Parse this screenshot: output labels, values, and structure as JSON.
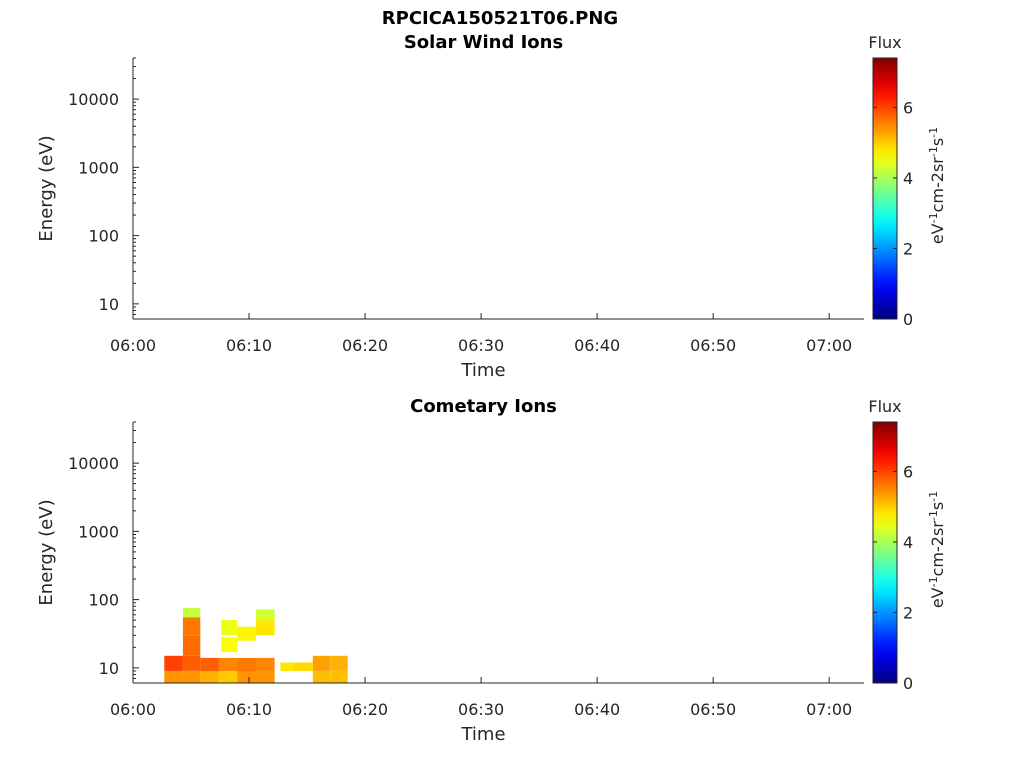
{
  "figure": {
    "filename_title": "RPCICA150521T06.PNG"
  },
  "chart_data": [
    {
      "type": "heatmap",
      "title": "Solar Wind Ions",
      "xlabel": "Time",
      "ylabel": "Energy (eV)",
      "x_ticks": [
        "06:00",
        "06:10",
        "06:20",
        "06:30",
        "06:40",
        "06:50",
        "07:00"
      ],
      "y_ticks": [
        "10",
        "100",
        "1000",
        "10000"
      ],
      "y_scale": "log",
      "ylim": [
        6,
        40000
      ],
      "xlim_minutes": [
        0,
        63
      ],
      "colorbar": {
        "title": "Flux",
        "label": "eV-1cm-2sr-1s-1",
        "ticks": [
          "0",
          "2",
          "4",
          "6"
        ],
        "range": [
          0,
          7.4
        ],
        "colormap": "jet"
      },
      "cells": []
    },
    {
      "type": "heatmap",
      "title": "Cometary Ions",
      "xlabel": "Time",
      "ylabel": "Energy (eV)",
      "x_ticks": [
        "06:00",
        "06:10",
        "06:20",
        "06:30",
        "06:40",
        "06:50",
        "07:00"
      ],
      "y_ticks": [
        "10",
        "100",
        "1000",
        "10000"
      ],
      "y_scale": "log",
      "ylim": [
        6,
        40000
      ],
      "xlim_minutes": [
        0,
        63
      ],
      "colorbar": {
        "title": "Flux",
        "label": "eV-1cm-2sr-1s-1",
        "ticks": [
          "0",
          "2",
          "4",
          "6"
        ],
        "range": [
          0,
          7.4
        ],
        "colormap": "jet"
      },
      "cells": [
        {
          "t0": 2.7,
          "t1": 4.3,
          "e0": 6,
          "e1": 9,
          "v": 5.4
        },
        {
          "t0": 2.7,
          "t1": 4.3,
          "e0": 9,
          "e1": 15,
          "v": 6.0
        },
        {
          "t0": 4.3,
          "t1": 5.8,
          "e0": 6,
          "e1": 9,
          "v": 5.4
        },
        {
          "t0": 4.3,
          "t1": 5.8,
          "e0": 9,
          "e1": 15,
          "v": 5.8
        },
        {
          "t0": 4.3,
          "t1": 5.8,
          "e0": 15,
          "e1": 30,
          "v": 5.7
        },
        {
          "t0": 4.3,
          "t1": 5.8,
          "e0": 30,
          "e1": 55,
          "v": 5.6
        },
        {
          "t0": 4.3,
          "t1": 5.8,
          "e0": 55,
          "e1": 75,
          "v": 4.2
        },
        {
          "t0": 5.8,
          "t1": 7.4,
          "e0": 6,
          "e1": 9,
          "v": 5.2
        },
        {
          "t0": 5.8,
          "t1": 7.4,
          "e0": 9,
          "e1": 14,
          "v": 5.8
        },
        {
          "t0": 7.4,
          "t1": 9.0,
          "e0": 6,
          "e1": 9,
          "v": 5.0
        },
        {
          "t0": 7.4,
          "t1": 9.0,
          "e0": 9,
          "e1": 14,
          "v": 5.5
        },
        {
          "t0": 7.6,
          "t1": 9.0,
          "e0": 17,
          "e1": 28,
          "v": 4.6
        },
        {
          "t0": 7.6,
          "t1": 9.0,
          "e0": 30,
          "e1": 50,
          "v": 4.5
        },
        {
          "t0": 9.0,
          "t1": 10.6,
          "e0": 6,
          "e1": 9,
          "v": 5.4
        },
        {
          "t0": 9.0,
          "t1": 10.6,
          "e0": 9,
          "e1": 14,
          "v": 5.6
        },
        {
          "t0": 9.0,
          "t1": 10.6,
          "e0": 25,
          "e1": 40,
          "v": 4.7
        },
        {
          "t0": 10.6,
          "t1": 12.2,
          "e0": 6,
          "e1": 9,
          "v": 5.4
        },
        {
          "t0": 10.6,
          "t1": 12.2,
          "e0": 9,
          "e1": 14,
          "v": 5.5
        },
        {
          "t0": 10.6,
          "t1": 12.2,
          "e0": 30,
          "e1": 50,
          "v": 4.8
        },
        {
          "t0": 10.6,
          "t1": 12.2,
          "e0": 50,
          "e1": 72,
          "v": 4.3
        },
        {
          "t0": 12.7,
          "t1": 13.8,
          "e0": 9,
          "e1": 12,
          "v": 4.8
        },
        {
          "t0": 13.8,
          "t1": 15.5,
          "e0": 9,
          "e1": 12,
          "v": 4.9
        },
        {
          "t0": 15.5,
          "t1": 17.0,
          "e0": 6,
          "e1": 9,
          "v": 5.1
        },
        {
          "t0": 15.5,
          "t1": 17.0,
          "e0": 9,
          "e1": 15,
          "v": 5.3
        },
        {
          "t0": 17.0,
          "t1": 18.5,
          "e0": 6,
          "e1": 9,
          "v": 5.1
        },
        {
          "t0": 17.0,
          "t1": 18.5,
          "e0": 9,
          "e1": 15,
          "v": 5.2
        }
      ]
    }
  ]
}
